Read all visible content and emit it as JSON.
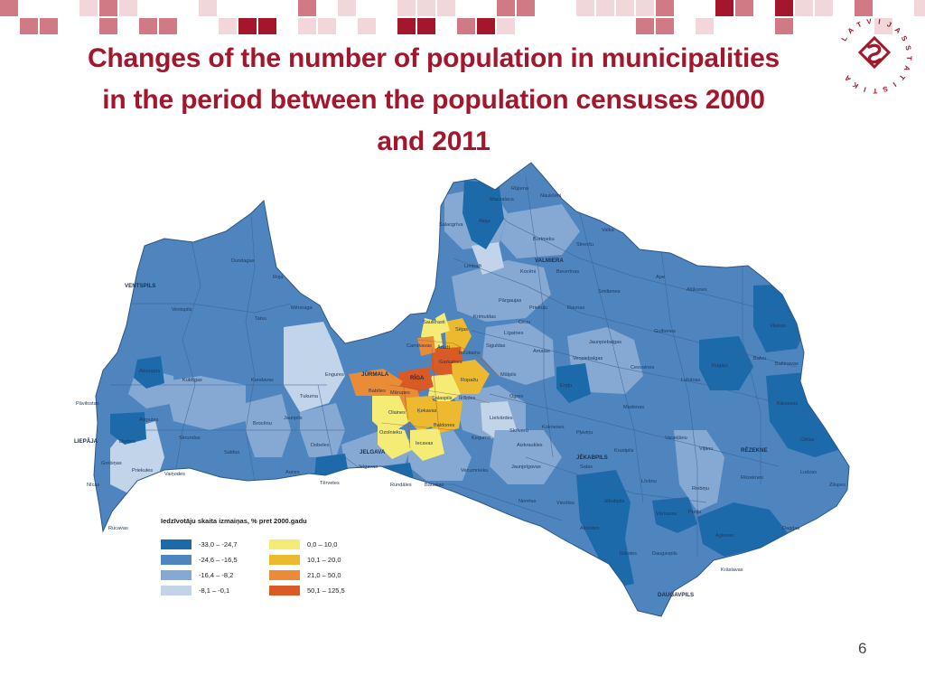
{
  "slide": {
    "title_lines": [
      "Changes of the number of population in municipalities",
      "in the period between the population censuses 2000",
      "and 2011"
    ],
    "page_number": "6"
  },
  "logo": {
    "text_chars": [
      "L",
      "A",
      "T",
      "V",
      "I",
      "J",
      "A",
      "S",
      "S",
      "T",
      "A",
      "T",
      "I",
      "S",
      "T",
      "I",
      "K",
      "A"
    ],
    "color": "#a3162b"
  },
  "colors": {
    "title": "#a3162b",
    "deco_dark": "#a3162b",
    "deco_mid": "#d07a86",
    "deco_light": "#f1d6da"
  },
  "legend": {
    "title": "Iedzīvotāju skaita izmaiņas, % pret 2000.gadu",
    "items": [
      {
        "label": "-33,0 – -24,7",
        "color": "#1d6aab"
      },
      {
        "label": "-24,6 – -16,5",
        "color": "#4e85be"
      },
      {
        "label": "-16,4 – -8,2",
        "color": "#86a9d3"
      },
      {
        "label": "-8,1 – -0,1",
        "color": "#c1d4ea"
      },
      {
        "label": "0,0 – 10,0",
        "color": "#f5ec76"
      },
      {
        "label": "10,1 – 20,0",
        "color": "#edb92f"
      },
      {
        "label": "21,0 – 50,0",
        "color": "#ea8b38"
      },
      {
        "label": "50,1 – 125,5",
        "color": "#d95a25"
      }
    ]
  },
  "map_labels": {
    "cities": [
      "VENTSPILS",
      "LIEPĀJA",
      "JŪRMALA",
      "RĪGA",
      "JELGAVA",
      "VALMIERA",
      "JĒKABPILS",
      "RĒZEKNE",
      "DAUGAVPILS"
    ],
    "municipalities": [
      "Rūjiena",
      "Mazsalaca",
      "Naukšēni",
      "Aloja",
      "Salacgrīva",
      "Valka",
      "Burtnieku",
      "Strenču",
      "Limbaži",
      "Kocēni",
      "Beverīnas",
      "Smiltenes",
      "Ape",
      "Alūksnes",
      "Dundagas",
      "Roja",
      "Mērsraga",
      "Talsu",
      "Ventspils",
      "Pārgaujas",
      "Priekuļu",
      "Raunas",
      "Krimuldas",
      "Saulkrasti",
      "Sējas",
      "Cēsu",
      "Gulbenes",
      "Viļakas",
      "Carnikavas",
      "Ādaži",
      "Inčukalns",
      "Siguldas",
      "Līgatnes",
      "Jaunpiebalgas",
      "Amatas",
      "Baltinavas",
      "Engures",
      "Tukuma",
      "Kandavas",
      "Kuldīgas",
      "Alsungas",
      "Garkalnes",
      "Babītes",
      "Mārupes",
      "Ropažu",
      "Ikšķiles",
      "Salaspils",
      "Mālpils",
      "Vecpiebalgas",
      "Cesvaines",
      "Rugāju",
      "Balvu",
      "Lubānas",
      "Kārsavas",
      "Olaines",
      "Ķekavas",
      "Ērgļu",
      "Madonas",
      "Ogres",
      "Pāvilostas",
      "Aizputes",
      "Skrundas",
      "Brocēnu",
      "Jaunpils",
      "Dobeles",
      "Baldones",
      "Ozolnieku",
      "Iecavas",
      "Ķeguma",
      "Lielvārdes",
      "Skrīveru",
      "Kokneses",
      "Pļaviņu",
      "Varakļānu",
      "Viļānu",
      "Ciblas",
      "Durbes",
      "Saldus",
      "Auces",
      "Tērvetes",
      "Jelgavas",
      "Rundāles",
      "Bauskas",
      "Vecumnieku",
      "Aizkraukles",
      "Jaunjelgavas",
      "Krustpils",
      "Salas",
      "Līvānu",
      "Riebiņu",
      "Rēzeknes",
      "Ludzas",
      "Zilupes",
      "Grobiņas",
      "Priekules",
      "Vaiņodes",
      "Nīcas",
      "Rucavas",
      "Neretas",
      "Viesītes",
      "Aknīstes",
      "Jēkabpils",
      "Vārkavas",
      "Preiļu",
      "Aglonas",
      "Dagdas",
      "Daugavpils",
      "Ilūkstes",
      "Krāslavas"
    ]
  }
}
